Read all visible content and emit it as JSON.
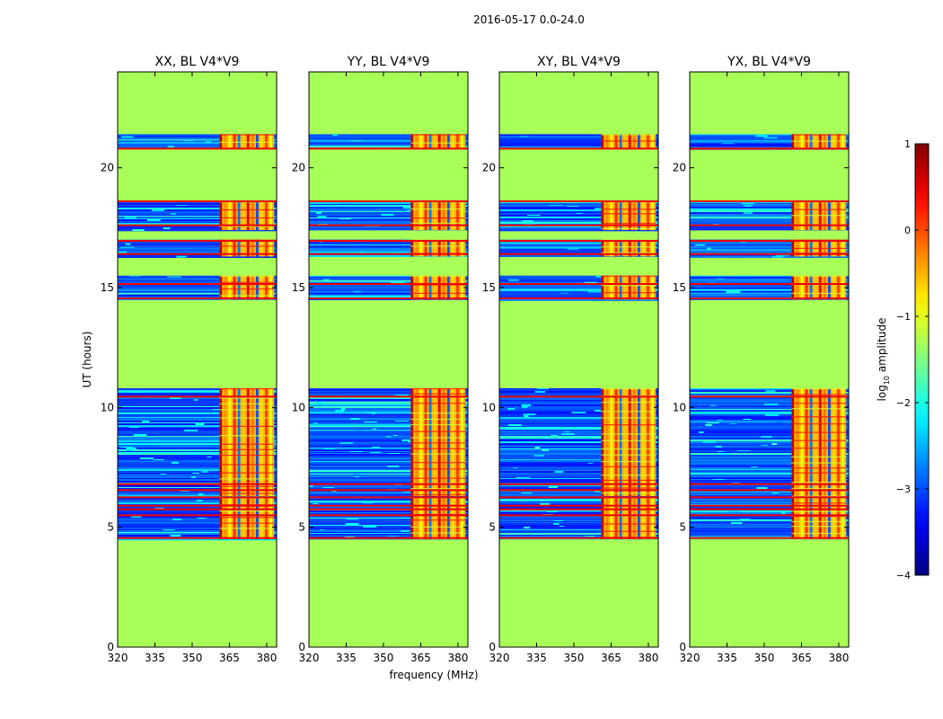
{
  "figure_title": "2016-05-17 0.0-24.0",
  "chart_data": {
    "type": "heatmap",
    "title": "2016-05-17 0.0-24.0",
    "xlabel": "frequency (MHz)",
    "ylabel": "UT (hours)",
    "xlim": [
      320,
      384
    ],
    "ylim": [
      0,
      24
    ],
    "x_ticks": [
      320,
      335,
      350,
      365,
      380
    ],
    "y_ticks": [
      0,
      5,
      10,
      15,
      20
    ],
    "panels": [
      {
        "title": "XX, BL V4*V9",
        "rfi_band": [
          361,
          383
        ]
      },
      {
        "title": "YY, BL V4*V9",
        "rfi_band": [
          361,
          383
        ]
      },
      {
        "title": "XY, BL V4*V9",
        "rfi_band": [
          361,
          383
        ]
      },
      {
        "title": "YX, BL V4*V9",
        "rfi_band": [
          361,
          383
        ]
      }
    ],
    "data_blocks_hours": [
      [
        4.5,
        6.3
      ],
      [
        6.3,
        10.8
      ],
      [
        14.5,
        15.5
      ],
      [
        16.3,
        17.0
      ],
      [
        17.4,
        18.6
      ],
      [
        20.8,
        21.4
      ]
    ],
    "flag_lines_hours": [
      4.55,
      5.5,
      5.75,
      5.9,
      6.25,
      6.55,
      6.8,
      10.45,
      14.55,
      15.15,
      16.4,
      16.95,
      17.6,
      18.6,
      20.8
    ],
    "masked_value": -1.3,
    "colorbar": {
      "label_main": "log",
      "label_sub": "10",
      "label_rest": " amplitude",
      "min": -4,
      "max": 1,
      "ticks": [
        -4,
        -3,
        -2,
        -1,
        0,
        1
      ],
      "tick_labels": [
        "−4",
        "−3",
        "−2",
        "−1",
        "0",
        "1"
      ]
    }
  }
}
